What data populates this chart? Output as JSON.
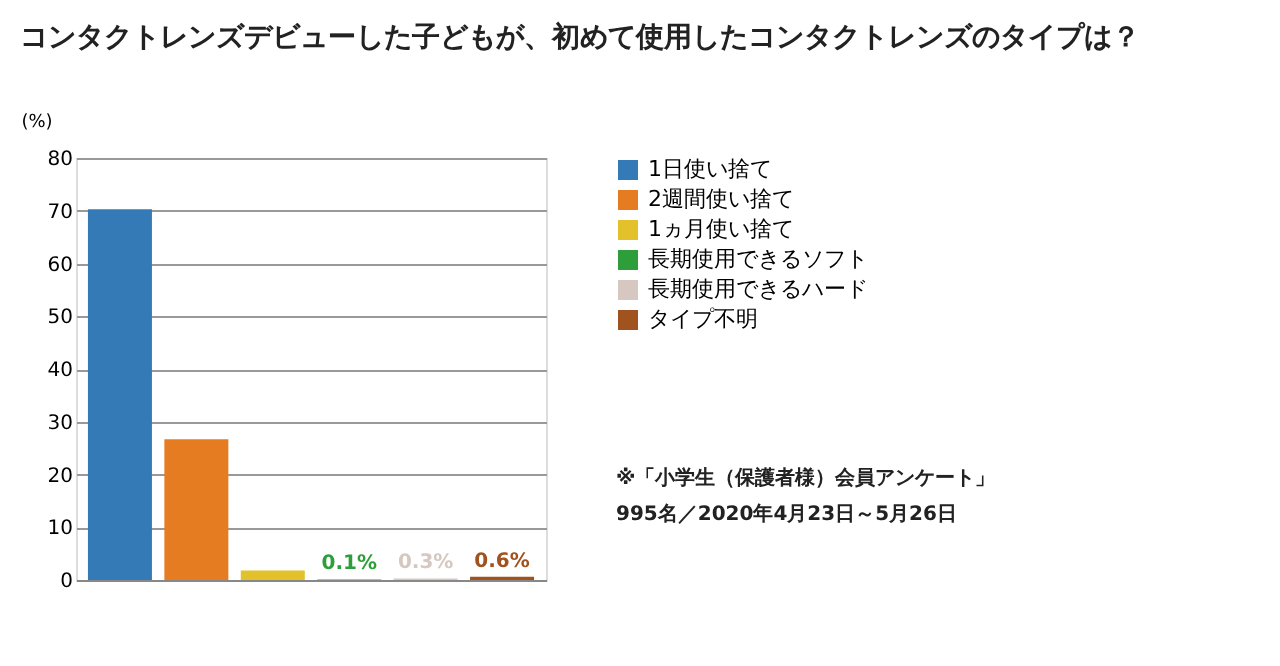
{
  "chart_data": {
    "type": "bar",
    "title": "コンタクトレンズデビューした子どもが、初めて使用したコンタクトレンズのタイプは？",
    "ylabel": "(%)",
    "categories": [
      null,
      null,
      null,
      null,
      null,
      null
    ],
    "series": [
      {
        "name": "1日使い捨て",
        "color": "#337ab7",
        "values": [
          70.3,
          null,
          null,
          null,
          null,
          null
        ]
      },
      {
        "name": "2週間使い捨て",
        "color": "#e67c22",
        "values": [
          null,
          26.7,
          null,
          null,
          null,
          null
        ]
      },
      {
        "name": "1ヵ月使い捨て",
        "color": "#e2c12a",
        "values": [
          null,
          null,
          1.8,
          null,
          null,
          null
        ]
      },
      {
        "name": "長期使用できるソフト",
        "color": "#2e9e3a",
        "values": [
          null,
          null,
          null,
          0.1,
          null,
          null
        ],
        "value_labels": [
          null,
          null,
          null,
          "0.1%",
          null,
          null
        ]
      },
      {
        "name": "長期使用できるハード",
        "color": "#d6c8c0",
        "values": [
          null,
          null,
          null,
          null,
          0.3,
          null
        ],
        "value_labels": [
          null,
          null,
          null,
          null,
          "0.3%",
          null
        ]
      },
      {
        "name": "タイプ不明",
        "color": "#a0531e",
        "values": [
          null,
          null,
          null,
          null,
          null,
          0.6
        ],
        "value_labels": [
          null,
          null,
          null,
          null,
          null,
          "0.6%"
        ]
      }
    ],
    "ylim": [
      0,
      80
    ],
    "yticks": [
      0,
      10,
      20,
      30,
      40,
      50,
      60,
      70,
      80
    ],
    "grid": "y",
    "legend": "right",
    "tick_labels": "y",
    "annotations": [
      "※「小学生（保護者様）会員アンケート」",
      "995名／2020年4月23日～5月26日"
    ]
  }
}
